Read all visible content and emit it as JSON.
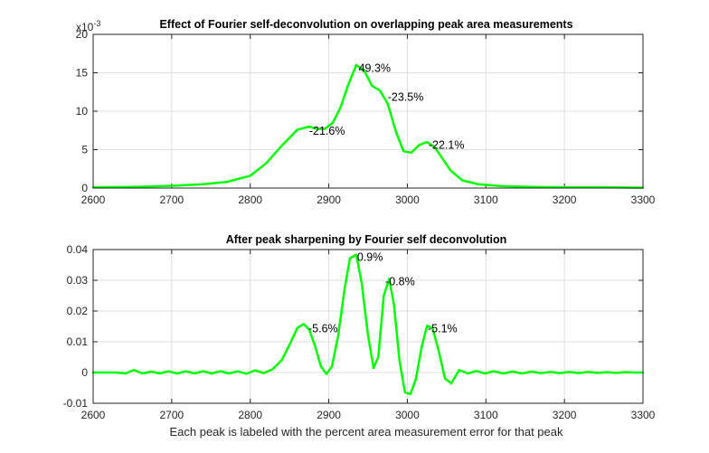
{
  "chart_data": [
    {
      "type": "line",
      "title": "Effect of Fourier self-deconvolution on overlapping peak area measurements",
      "xlabel": "",
      "ylabel": "",
      "xlim": [
        2600,
        3300
      ],
      "ylim": [
        0,
        20
      ],
      "y_exponent_label": "x10",
      "y_exponent": "-3",
      "x_ticks": [
        "2600",
        "2700",
        "2800",
        "2900",
        "3000",
        "3100",
        "3200",
        "3300"
      ],
      "y_ticks": [
        "0",
        "5",
        "10",
        "15",
        "20"
      ],
      "grid": true,
      "line_color": "#00ff00",
      "series": [
        {
          "x": [
            2600,
            2650,
            2700,
            2740,
            2770,
            2800,
            2820,
            2840,
            2860,
            2875,
            2885,
            2895,
            2905,
            2915,
            2925,
            2935,
            2945,
            2955,
            2965,
            2975,
            2985,
            2995,
            3005,
            3015,
            3025,
            3035,
            3045,
            3055,
            3070,
            3090,
            3120,
            3160,
            3200,
            3250,
            3300
          ],
          "values": [
            0.1,
            0.15,
            0.3,
            0.5,
            0.8,
            1.6,
            3.2,
            5.5,
            7.6,
            8.0,
            7.7,
            7.7,
            8.5,
            10.5,
            13.5,
            16.0,
            15.3,
            13.3,
            12.7,
            11.0,
            7.5,
            4.8,
            4.6,
            5.6,
            6.0,
            5.3,
            3.8,
            2.3,
            1.0,
            0.5,
            0.25,
            0.15,
            0.1,
            0.1,
            0.05
          ]
        }
      ],
      "annotations": [
        {
          "text": "-21.6%",
          "x": 2875,
          "y": 7.4
        },
        {
          "text": "49.3%",
          "x": 2938,
          "y": 15.6
        },
        {
          "text": "-23.5%",
          "x": 2975,
          "y": 11.8
        },
        {
          "text": "-22.1%",
          "x": 3027,
          "y": 5.6
        }
      ]
    },
    {
      "type": "line",
      "title": "After peak sharpening by Fourier self deconvolution",
      "xlabel": "Each peak is labeled with the percent area measurement error for that peak",
      "ylabel": "",
      "xlim": [
        2600,
        3300
      ],
      "ylim": [
        -0.01,
        0.04
      ],
      "x_ticks": [
        "2600",
        "2700",
        "2800",
        "2900",
        "3000",
        "3100",
        "3200",
        "3300"
      ],
      "y_ticks": [
        "-0.01",
        "0",
        "0.01",
        "0.02",
        "0.03",
        "0.04"
      ],
      "grid": true,
      "line_color": "#00ff00",
      "series": [
        {
          "x": [
            2600,
            2612,
            2630,
            2641,
            2652,
            2663,
            2674,
            2685,
            2696,
            2707,
            2718,
            2729,
            2740,
            2751,
            2762,
            2773,
            2784,
            2795,
            2806,
            2817,
            2828,
            2840,
            2850,
            2860,
            2868,
            2875,
            2882,
            2890,
            2897,
            2904,
            2912,
            2920,
            2927,
            2935,
            2942,
            2950,
            2957,
            2963,
            2970,
            2977,
            2983,
            2990,
            2997,
            3004,
            3011,
            3018,
            3025,
            3032,
            3040,
            3048,
            3056,
            3066,
            3077,
            3088,
            3099,
            3110,
            3122,
            3134,
            3146,
            3158,
            3170,
            3182,
            3194,
            3206,
            3218,
            3230,
            3242,
            3254,
            3266,
            3278,
            3290,
            3300
          ],
          "values": [
            0.0,
            0.0,
            0.0,
            -0.0003,
            0.0008,
            -0.0003,
            0.0003,
            -0.0003,
            0.0004,
            -0.0003,
            0.0004,
            -0.0003,
            0.0004,
            -0.0003,
            0.0004,
            -0.0003,
            0.0004,
            -0.0004,
            0.0007,
            -0.0002,
            0.001,
            0.004,
            0.009,
            0.0145,
            0.0158,
            0.014,
            0.009,
            0.002,
            -0.0005,
            0.002,
            0.012,
            0.027,
            0.0372,
            0.0383,
            0.029,
            0.012,
            0.0015,
            0.005,
            0.025,
            0.0305,
            0.022,
            0.004,
            -0.0065,
            -0.007,
            -0.002,
            0.008,
            0.0152,
            0.0145,
            0.007,
            -0.002,
            -0.0035,
            0.0008,
            -0.0003,
            0.0005,
            -0.0003,
            0.0004,
            -0.0003,
            0.0003,
            -0.0003,
            0.0003,
            -0.0002,
            0.0002,
            -0.0002,
            0.0002,
            -0.0002,
            0.0002,
            -0.0001,
            0.0001,
            -0.0001,
            0.0001,
            0.0,
            0.0
          ]
        }
      ],
      "annotations": [
        {
          "text": "-5.6%",
          "x": 2874,
          "y": 0.0142
        },
        {
          "text": "0.9%",
          "x": 2936,
          "y": 0.0375
        },
        {
          "text": "-0.8%",
          "x": 2972,
          "y": 0.0296
        },
        {
          "text": "-5.1%",
          "x": 3026,
          "y": 0.0142
        }
      ]
    }
  ]
}
